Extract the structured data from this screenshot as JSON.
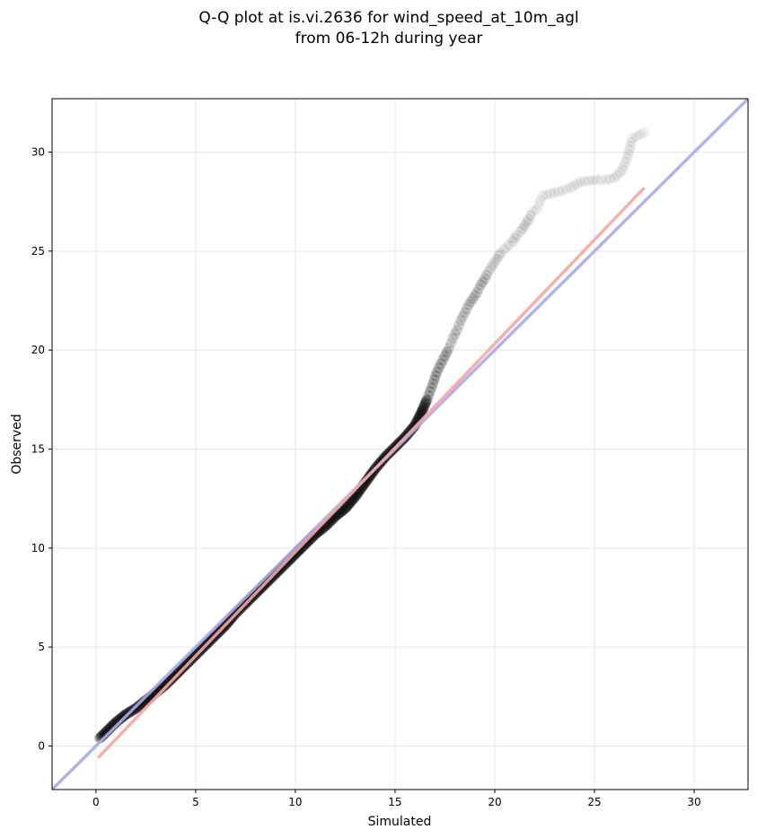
{
  "chart_data": {
    "type": "scatter",
    "title": "Q-Q plot at is.vi.2636 for wind_speed_at_10m_agl",
    "subtitle": "from 06-12h during year",
    "xlabel": "Simulated",
    "ylabel": "Observed",
    "xlim": [
      -2.2,
      32.7
    ],
    "ylim": [
      -2.2,
      32.7
    ],
    "xticks": [
      0,
      5,
      10,
      15,
      20,
      25,
      30
    ],
    "yticks": [
      0,
      5,
      10,
      15,
      20,
      25,
      30
    ],
    "xtick_labels": [
      "0",
      "5",
      "10",
      "15",
      "20",
      "25",
      "30"
    ],
    "ytick_labels": [
      "0",
      "5",
      "10",
      "15",
      "20",
      "25",
      "30"
    ],
    "grid": true,
    "legend": "none",
    "point_color": "#000000",
    "identity_line_color": "#aaaaf0",
    "fit_line_color": "#f4a6a6",
    "identity_line": {
      "x": [
        -2.2,
        32.7
      ],
      "y": [
        -2.2,
        32.7
      ]
    },
    "fit_line": {
      "x": [
        0.1,
        27.5
      ],
      "y": [
        -0.6,
        28.2
      ]
    },
    "quantiles": {
      "x": [
        0.2,
        0.5,
        1,
        1.5,
        2,
        2.5,
        3,
        3.5,
        4,
        4.5,
        5,
        5.5,
        6,
        6.5,
        7,
        7.5,
        8,
        8.5,
        9,
        9.5,
        10,
        10.5,
        11,
        11.5,
        12,
        12.5,
        13,
        13.5,
        14,
        14.5,
        15,
        15.5,
        16,
        16.3,
        16.6,
        16.9,
        17.1,
        17.3,
        17.5,
        17.7,
        17.9,
        18.1,
        18.3,
        18.5,
        18.7,
        18.9,
        19.1,
        19.3,
        19.5,
        19.7,
        19.9,
        20.1,
        20.3,
        20.5,
        20.7,
        20.9,
        21.1,
        21.3,
        21.5,
        21.7,
        21.9,
        22.1,
        22.4,
        22.8,
        23.2,
        23.8,
        24.3,
        25.1,
        25.6,
        26.0,
        26.4,
        26.7,
        26.9,
        27.5
      ],
      "y": [
        0.4,
        0.7,
        1.2,
        1.6,
        1.9,
        2.3,
        2.7,
        3.1,
        3.6,
        4.1,
        4.6,
        5.1,
        5.6,
        6.1,
        6.7,
        7.2,
        7.7,
        8.2,
        8.7,
        9.2,
        9.7,
        10.2,
        10.7,
        11.1,
        11.6,
        12.0,
        12.6,
        13.3,
        14.0,
        14.6,
        15.1,
        15.6,
        16.2,
        16.8,
        17.5,
        18.3,
        18.9,
        19.3,
        19.7,
        20.1,
        20.6,
        21.0,
        21.5,
        21.9,
        22.3,
        22.6,
        22.9,
        23.3,
        23.6,
        24.0,
        24.3,
        24.6,
        24.9,
        25.1,
        25.3,
        25.5,
        25.8,
        26.0,
        26.3,
        26.6,
        27.0,
        27.1,
        27.8,
        27.9,
        28.0,
        28.2,
        28.5,
        28.6,
        28.6,
        28.7,
        29.1,
        29.9,
        30.7,
        31.0
      ]
    }
  }
}
